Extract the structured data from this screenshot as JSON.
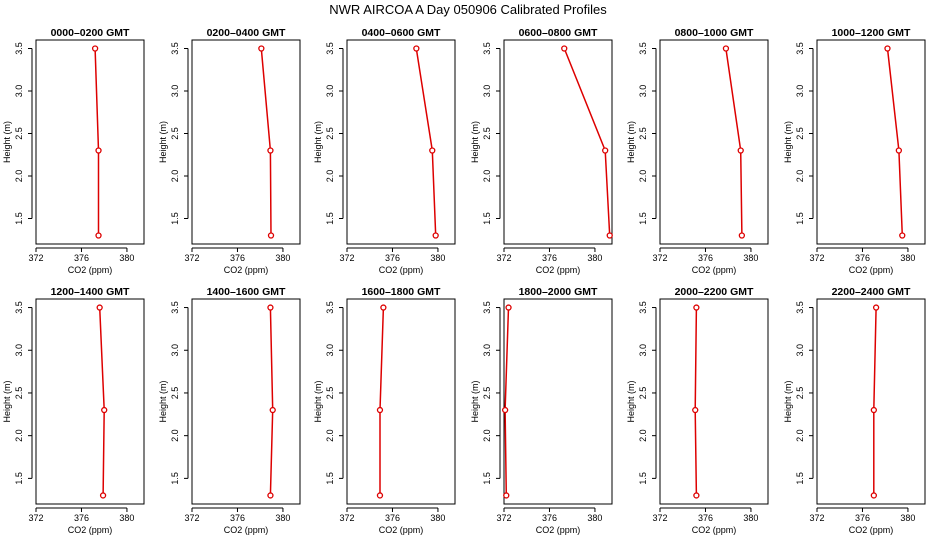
{
  "chart_data": {
    "type": "line",
    "title": "NWR AIRCOA A  Day 050906  Calibrated Profiles",
    "xlabel": "CO2 (ppm)",
    "ylabel": "Height (m)",
    "xlim": [
      372,
      381.5
    ],
    "ylim": [
      1.2,
      3.6
    ],
    "x_ticks": [
      372,
      376,
      380
    ],
    "y_ticks": [
      1.5,
      2.0,
      2.5,
      3.0,
      3.5
    ],
    "x_tick_labels": [
      "372",
      "376",
      "380"
    ],
    "y_tick_labels": [
      "1.5",
      "2.0",
      "2.5",
      "3.0",
      "3.5"
    ],
    "line_color": "#dd0000",
    "panels": [
      {
        "title": "0000–0200 GMT",
        "heights": [
          3.5,
          2.3,
          1.3
        ],
        "co2": [
          377.2,
          377.5,
          377.5
        ]
      },
      {
        "title": "0200–0400 GMT",
        "heights": [
          3.5,
          2.3,
          1.3
        ],
        "co2": [
          378.1,
          378.9,
          378.95
        ]
      },
      {
        "title": "0400–0600 GMT",
        "heights": [
          3.5,
          2.3,
          1.3
        ],
        "co2": [
          378.1,
          379.5,
          379.8
        ]
      },
      {
        "title": "0600–0800 GMT",
        "heights": [
          3.5,
          2.3,
          1.3
        ],
        "co2": [
          377.3,
          380.9,
          381.3
        ]
      },
      {
        "title": "0800–1000 GMT",
        "heights": [
          3.5,
          2.3,
          1.3
        ],
        "co2": [
          377.8,
          379.1,
          379.2
        ]
      },
      {
        "title": "1000–1200 GMT",
        "heights": [
          3.5,
          2.3,
          1.3
        ],
        "co2": [
          378.2,
          379.2,
          379.5
        ]
      },
      {
        "title": "1200–1400 GMT",
        "heights": [
          3.5,
          2.3,
          1.3
        ],
        "co2": [
          377.6,
          378.0,
          377.9
        ]
      },
      {
        "title": "1400–1600 GMT",
        "heights": [
          3.5,
          2.3,
          1.3
        ],
        "co2": [
          378.9,
          379.1,
          378.9
        ]
      },
      {
        "title": "1600–1800 GMT",
        "heights": [
          3.5,
          2.3,
          1.3
        ],
        "co2": [
          375.2,
          374.9,
          374.9
        ]
      },
      {
        "title": "1800–2000 GMT",
        "heights": [
          3.5,
          2.3,
          1.3
        ],
        "co2": [
          372.4,
          372.1,
          372.2
        ]
      },
      {
        "title": "2000–2200 GMT",
        "heights": [
          3.5,
          2.3,
          1.3
        ],
        "co2": [
          375.2,
          375.1,
          375.2
        ]
      },
      {
        "title": "2200–2400 GMT",
        "heights": [
          3.5,
          2.3,
          1.3
        ],
        "co2": [
          377.2,
          377.0,
          377.0
        ]
      }
    ]
  }
}
